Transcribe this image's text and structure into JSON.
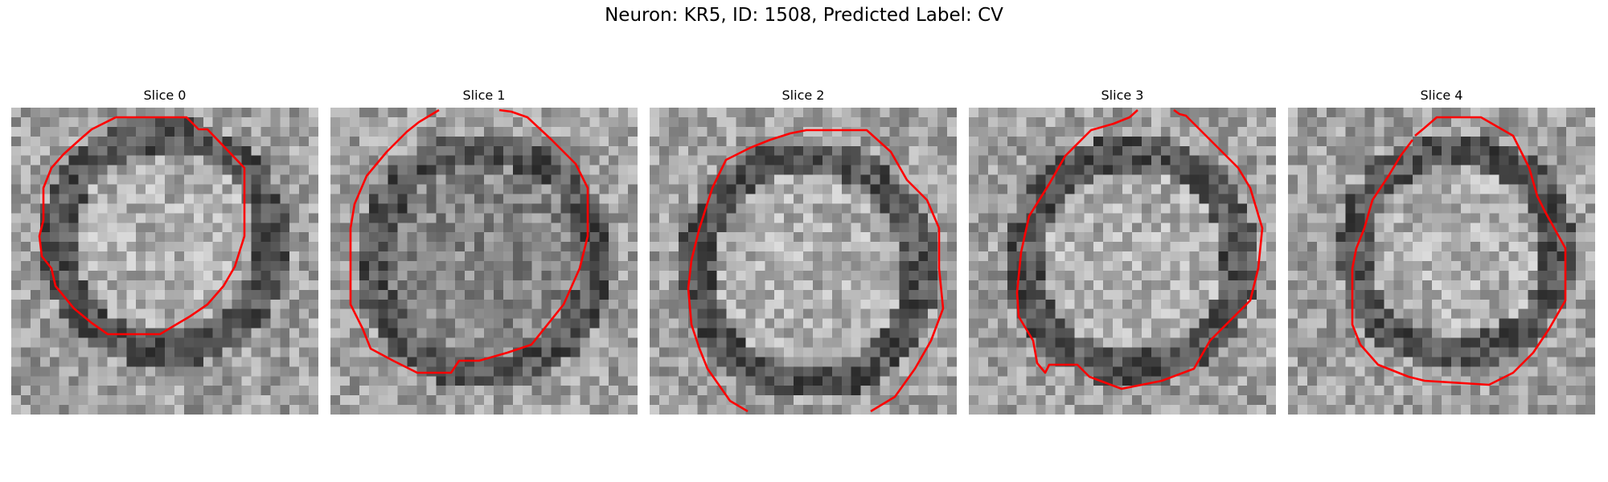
{
  "figure": {
    "title": "Neuron: KR5, ID: 1508, Predicted Label: CV",
    "contour_color": "#ff0000",
    "colormap": "grayscale",
    "slices": [
      {
        "label": "Slice 0"
      },
      {
        "label": "Slice 1"
      },
      {
        "label": "Slice 2"
      },
      {
        "label": "Slice 3"
      },
      {
        "label": "Slice 4"
      }
    ]
  }
}
